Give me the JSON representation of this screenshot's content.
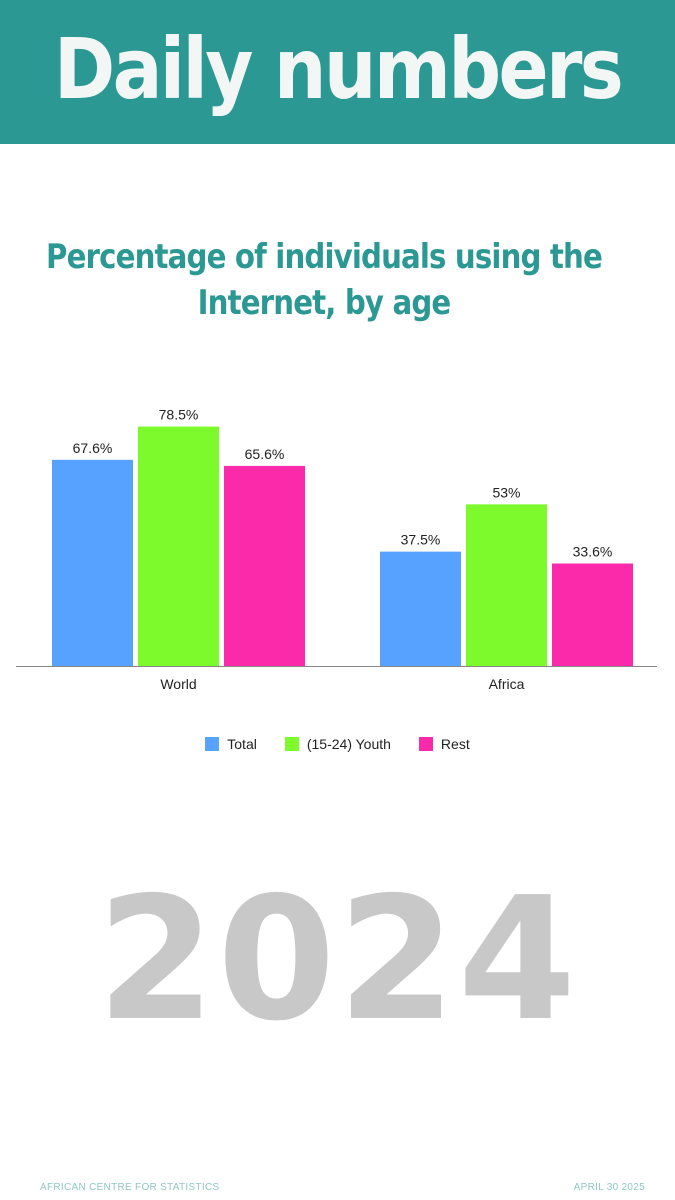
{
  "header": {
    "title": "Daily numbers"
  },
  "colors": {
    "brand": "#2b9894",
    "total": "#57a2ff",
    "youth": "#7dfa2c",
    "rest": "#fa2aab",
    "year": "#c8c8c8"
  },
  "chart_data": {
    "type": "bar",
    "title": "Percentage of individuals using the Internet, by age",
    "categories": [
      "World",
      "Africa"
    ],
    "series": [
      {
        "name": "Total",
        "values": [
          67.6,
          37.5
        ],
        "labels": [
          "67.6%",
          "37.5%"
        ],
        "color": "#57a2ff"
      },
      {
        "name": "(15-24) Youth",
        "values": [
          78.5,
          53
        ],
        "labels": [
          "78.5%",
          "53%"
        ],
        "color": "#7dfa2c"
      },
      {
        "name": "Rest",
        "values": [
          65.6,
          33.6
        ],
        "labels": [
          "65.6%",
          "33.6%"
        ],
        "color": "#fa2aab"
      }
    ],
    "ylim": [
      0,
      100
    ],
    "grid": false,
    "legend_position": "bottom"
  },
  "year": "2024",
  "footer": {
    "left": "AFRICAN CENTRE FOR STATISTICS",
    "right": "APRIL 30 2025"
  }
}
